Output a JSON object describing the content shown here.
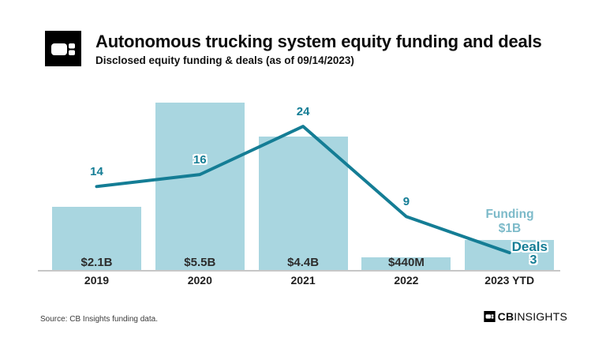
{
  "header": {
    "title": "Autonomous trucking system equity funding and deals",
    "subtitle": "Disclosed equity funding & deals (as of 09/14/2023)"
  },
  "footer": {
    "source": "Source: CB Insights funding data.",
    "brand_bold": "CB",
    "brand_light": "INSIGHTS"
  },
  "colors": {
    "bar": "#a9d6e0",
    "line": "#147d95",
    "funding_label": "#7cbac9",
    "axis": "#c7c7c7"
  },
  "chart_data": {
    "type": "bar+line",
    "categories": [
      "2019",
      "2020",
      "2021",
      "2022",
      "2023 YTD"
    ],
    "series": [
      {
        "name": "Funding",
        "type": "bar",
        "unit": "USD",
        "labels": [
          "$2.1B",
          "$5.5B",
          "$4.4B",
          "$440M",
          "$1B"
        ],
        "values_billions": [
          2.1,
          5.5,
          4.4,
          0.44,
          1.0
        ]
      },
      {
        "name": "Deals",
        "type": "line",
        "values": [
          14,
          16,
          24,
          9,
          3
        ]
      }
    ],
    "last_point_annotation": {
      "funding_name": "Funding",
      "funding_value": "$1B",
      "deals_name": "Deals",
      "deals_value": "3"
    },
    "ylim_funding_billions": [
      0,
      5.5
    ],
    "ylim_deals": [
      0,
      24
    ],
    "grid": false,
    "legend_position": "inline-last-point"
  }
}
